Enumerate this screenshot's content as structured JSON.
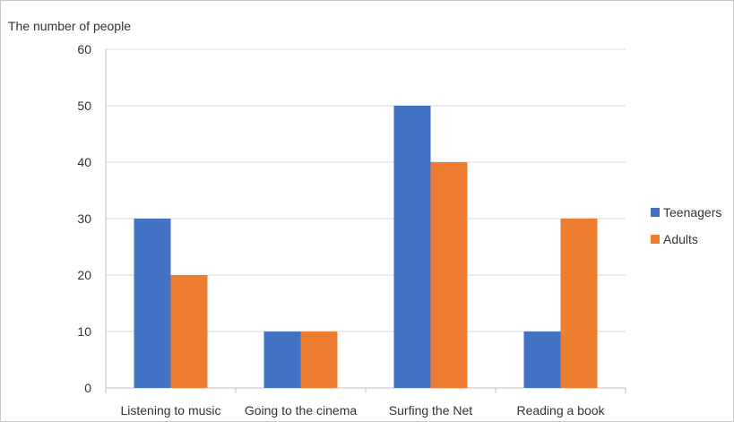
{
  "chart_data": {
    "type": "bar",
    "ylabel": "The number of people",
    "categories": [
      "Listening to music",
      "Going to the cinema",
      "Surfing the Net",
      "Reading a book"
    ],
    "series": [
      {
        "name": "Teenagers",
        "values": [
          30,
          10,
          50,
          10
        ],
        "color": "#4472C4"
      },
      {
        "name": "Adults",
        "values": [
          20,
          10,
          40,
          30
        ],
        "color": "#ED7D31"
      }
    ],
    "ylim": [
      0,
      60
    ],
    "yticks": [
      0,
      10,
      20,
      30,
      40,
      50,
      60
    ],
    "grid": true,
    "legend_position": "right",
    "colors": {
      "grid": "#d9d9d9",
      "axis": "#bfbfbf"
    }
  }
}
